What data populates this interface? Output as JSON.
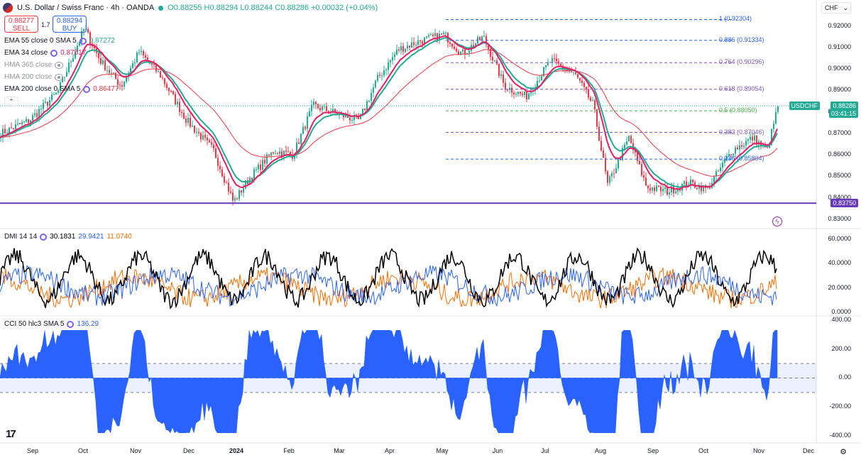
{
  "header": {
    "symbol_title": "U.S. Dollar / Swiss Franc · 4h · OANDA",
    "open": "O0.88255",
    "high": "H0.88294",
    "low": "L0.88244",
    "close": "C0.88286",
    "change": "+0.00032 (+0.04%)"
  },
  "trade": {
    "sell_price": "0.88277",
    "sell_label": "SELL",
    "buy_price": "0.88294",
    "buy_label": "BUY",
    "spread": "1.7"
  },
  "currency": "CHF",
  "indicators": [
    {
      "label": "EMA 55 close 0 SMA 5",
      "value": "0.87272",
      "color": "#22ab94",
      "visible": true
    },
    {
      "label": "EMA 34 close",
      "value": "0.87517",
      "color": "#e91e63",
      "visible": true
    },
    {
      "label": "HMA 365 close",
      "value": "",
      "color": "#9598a1",
      "visible": false
    },
    {
      "label": "HMA 200 close",
      "value": "",
      "color": "#9598a1",
      "visible": false
    },
    {
      "label": "EMA 200 close 0 SMA 5",
      "value": "0.86477",
      "color": "#f23645",
      "visible": true
    }
  ],
  "price_axis": [
    "0.92000",
    "0.91000",
    "0.90000",
    "0.89000",
    "0.88000",
    "0.87000",
    "0.86000",
    "0.85000",
    "0.84000",
    "0.83000"
  ],
  "price_tags": {
    "symbol": "USDCHF",
    "last": "0.88286",
    "countdown": "03:41:15",
    "level": "0.83750"
  },
  "fib_levels": [
    {
      "label": "1 (0.92304)",
      "price": 0.92304,
      "color": "#2962ff"
    },
    {
      "label": "0.886 (0.91334)",
      "price": 0.91334,
      "color": "#2962ff"
    },
    {
      "label": "0.764 (0.90296)",
      "price": 0.90296,
      "color": "#7e57c2"
    },
    {
      "label": "0.618 (0.89054)",
      "price": 0.89054,
      "color": "#7e57c2"
    },
    {
      "label": "0.5 (0.88050)",
      "price": 0.8805,
      "color": "#4caf50"
    },
    {
      "label": "0.382 (0.87046)",
      "price": 0.87046,
      "color": "#7e57c2"
    },
    {
      "label": "0.236 (0.85804)",
      "price": 0.85804,
      "color": "#2962ff"
    }
  ],
  "dmi": {
    "label": "DMI 14 14",
    "adx": "30.1831",
    "plus_di": "29.9421",
    "minus_di": "11.0740",
    "axis": [
      "60.0000",
      "40.0000",
      "20.0000",
      "0.0000"
    ]
  },
  "cci": {
    "label": "CCI 50 hlc3 SMA 5",
    "value": "136.29",
    "axis": [
      "400.00",
      "200.00",
      "0.00",
      "-200.00",
      "-400.00"
    ]
  },
  "time_axis": [
    "Sep",
    "Oct",
    "Nov",
    "Dec",
    "2024",
    "Feb",
    "Mar",
    "Apr",
    "May",
    "Jun",
    "Jul",
    "Aug",
    "Sep",
    "Oct",
    "Nov",
    "Dec"
  ],
  "colors": {
    "up": "#22ab94",
    "down": "#f23645",
    "level_line": "#673ab7",
    "adx": "#000000",
    "plus_di": "#2962ff",
    "minus_di": "#ff6d00",
    "cci": "#2962ff"
  },
  "icons": [
    "flag-icon",
    "eye-off-icon",
    "settings-icon",
    "bolt-icon",
    "gear-icon",
    "tradingview-logo"
  ]
}
